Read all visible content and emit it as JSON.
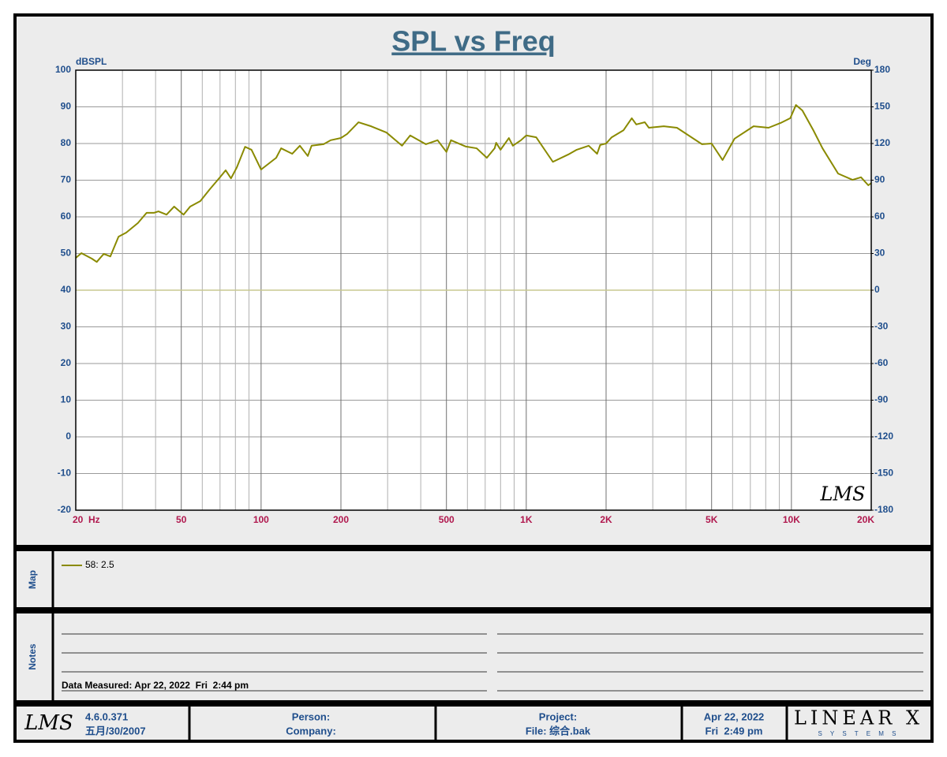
{
  "chart_data": {
    "type": "line",
    "title": "SPL vs Freq",
    "ylabel": "dBSPL",
    "y2label": "Deg",
    "annotation": "LMS",
    "xscale": "log",
    "xlim": [
      20,
      20000
    ],
    "xticks": [
      {
        "value": 20,
        "label": "20  Hz"
      },
      50,
      100,
      200,
      500,
      {
        "value": 1000,
        "label": "1K"
      },
      {
        "value": 2000,
        "label": "2K"
      },
      {
        "value": 5000,
        "label": "5K"
      },
      {
        "value": 10000,
        "label": "10K"
      },
      {
        "value": 20000,
        "label": "20K"
      }
    ],
    "xgrid": [
      30,
      40,
      60,
      70,
      80,
      90,
      300,
      400,
      600,
      700,
      800,
      900,
      3000,
      4000,
      6000,
      7000,
      8000,
      9000
    ],
    "ylim": [
      -20,
      100
    ],
    "yticks": [
      -20,
      -10,
      0,
      10,
      20,
      30,
      40,
      50,
      60,
      70,
      80,
      90,
      100
    ],
    "y2lim": [
      -180,
      180
    ],
    "y2ticks": [
      -180,
      -150,
      -120,
      -90,
      -60,
      -30,
      0,
      30,
      60,
      90,
      120,
      150,
      180
    ],
    "grid": true,
    "series": [
      {
        "name": "58: 2.5",
        "color": "#8a8a00",
        "x": [
          20,
          21,
          23,
          24,
          25.5,
          27,
          29,
          31,
          34.3,
          37,
          39.4,
          41,
          44,
          47,
          51,
          54,
          59,
          64,
          70,
          73.5,
          77,
          81,
          87,
          92,
          100,
          114,
          119,
          131,
          140,
          150,
          155,
          172,
          183,
          200,
          211,
          233,
          260,
          297,
          340,
          365,
          418,
          463,
          500,
          520,
          590,
          650,
          710,
          760,
          770,
          800,
          860,
          890,
          955,
          1000,
          1090,
          1260,
          1440,
          1550,
          1720,
          1850,
          1900,
          2000,
          2100,
          2325,
          2500,
          2600,
          2800,
          2900,
          3300,
          3700,
          4600,
          5000,
          5500,
          6100,
          7200,
          8200,
          9100,
          9900,
          10400,
          11000,
          12100,
          13100,
          15000,
          17000,
          18300,
          19500,
          20000
        ],
        "values": [
          48.8,
          50.1,
          48.6,
          47.7,
          49.9,
          49.2,
          54.6,
          55.7,
          58.3,
          61.1,
          61.1,
          61.5,
          60.6,
          62.8,
          60.6,
          62.8,
          64.3,
          67.5,
          70.8,
          72.7,
          70.5,
          73.5,
          79.1,
          78.3,
          72.9,
          76.1,
          78.7,
          77.2,
          79.4,
          76.6,
          79.4,
          79.8,
          80.9,
          81.5,
          82.6,
          85.8,
          84.7,
          83,
          79.4,
          82.2,
          79.8,
          80.9,
          77.7,
          80.9,
          79.2,
          78.7,
          76.1,
          78.7,
          80.2,
          78.3,
          81.5,
          79.4,
          80.9,
          82.2,
          81.7,
          75,
          77,
          78.3,
          79.4,
          77.2,
          79.6,
          80,
          81.7,
          83.6,
          86.9,
          85.2,
          85.8,
          84.3,
          84.7,
          84.3,
          79.8,
          80,
          75.5,
          81.3,
          84.7,
          84.3,
          85.6,
          86.9,
          90.5,
          89,
          83.6,
          78.7,
          71.8,
          70.1,
          70.8,
          68.6,
          69.2
        ]
      },
      {
        "color": "#c8c890",
        "axis": "y2",
        "x": [
          20,
          20000
        ],
        "values": [
          0,
          0
        ]
      }
    ]
  },
  "map": {
    "label": "Map"
  },
  "notes": {
    "label": "Notes",
    "measured": "Data Measured: Apr 22, 2022  Fri  2:44 pm"
  },
  "footer": {
    "logo": "LMS",
    "version": "4.6.0.371",
    "version_date": "五月/30/2007",
    "person": "Person:",
    "company": "Company:",
    "project": "Project:",
    "file": "File: 综合.bak",
    "date": "Apr 22, 2022",
    "time": "Fri  2:49 pm",
    "brand": "LINEAR X",
    "brand_sub": "S Y S T E M S"
  }
}
